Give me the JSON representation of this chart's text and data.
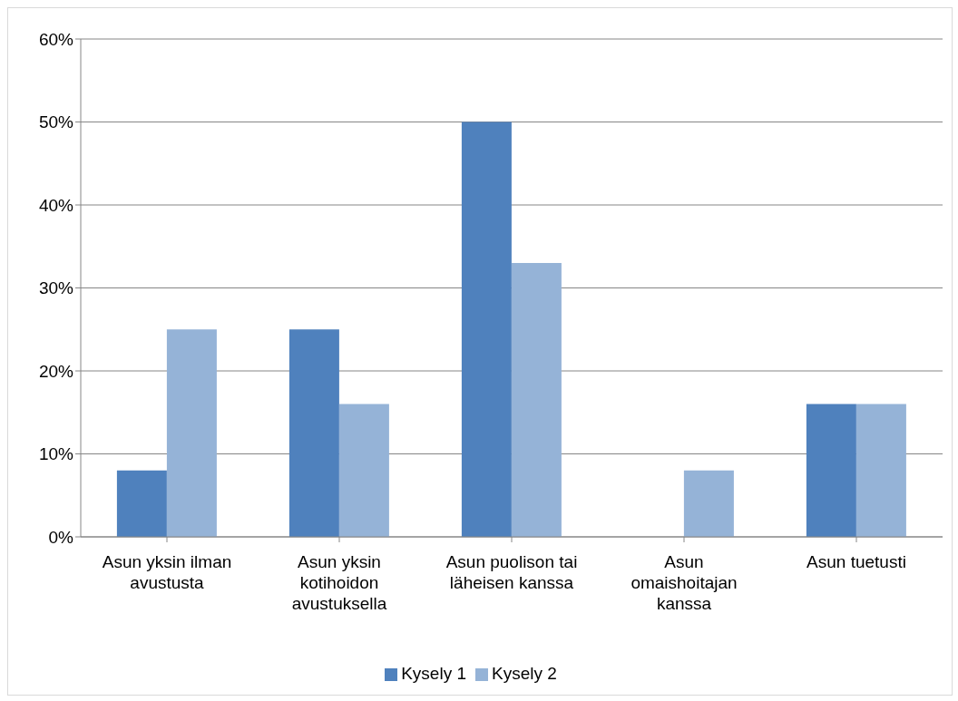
{
  "chart_data": {
    "type": "bar",
    "categories": [
      "Asun yksin ilman avustusta",
      "Asun yksin kotihoidon avustuksella",
      "Asun puolison tai läheisen kanssa",
      "Asun omaishoitajan kanssa",
      "Asun tuetusti"
    ],
    "series": [
      {
        "name": "Kysely 1",
        "color": "#4f81bd",
        "values": [
          8,
          25,
          50,
          0,
          16
        ]
      },
      {
        "name": "Kysely 2",
        "color": "#95b3d7",
        "values": [
          25,
          16,
          33,
          8,
          16
        ]
      }
    ],
    "ylim": [
      0,
      60
    ],
    "yticks": [
      {
        "value": 0,
        "label": "0%"
      },
      {
        "value": 10,
        "label": "10%"
      },
      {
        "value": 20,
        "label": "20%"
      },
      {
        "value": 30,
        "label": "30%"
      },
      {
        "value": 40,
        "label": "40%"
      },
      {
        "value": 50,
        "label": "50%"
      },
      {
        "value": 60,
        "label": "60%"
      }
    ],
    "grid": "y",
    "legend": "bottom"
  }
}
